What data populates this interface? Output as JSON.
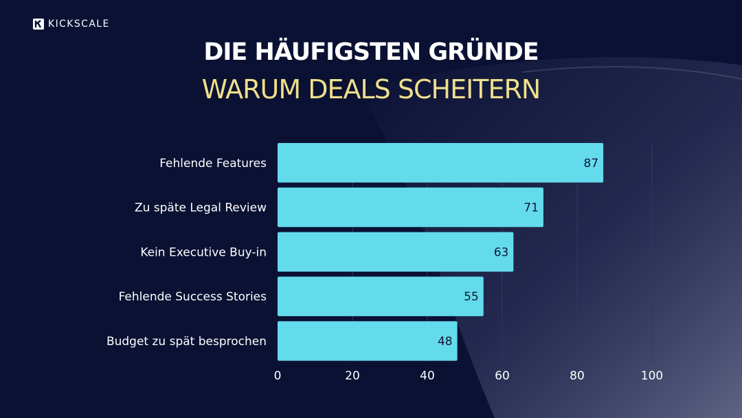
{
  "brand": {
    "name": "KICKSCALE",
    "logo_letter": "K"
  },
  "colors": {
    "background": "#0b1133",
    "bar": "#63dbec",
    "title": "#ffffff",
    "subtitle": "#eedf8c",
    "gridline": "#2f3866"
  },
  "chart_data": {
    "type": "bar",
    "orientation": "horizontal",
    "title": "DIE HÄUFIGSTEN GRÜNDE",
    "subtitle": "WARUM DEALS SCHEITERN",
    "categories": [
      "Fehlende Features",
      "Zu späte Legal Review",
      "Kein Executive Buy-in",
      "Fehlende Success Stories",
      "Budget zu spät besprochen"
    ],
    "values": [
      87,
      71,
      63,
      55,
      48
    ],
    "xlim": [
      0,
      100
    ],
    "xticks": [
      0,
      20,
      40,
      60,
      80,
      100
    ],
    "xtick_labels": [
      "0",
      "20",
      "40",
      "60",
      "80",
      "100"
    ],
    "grid": "vertical",
    "data_labels": true,
    "legend": "none"
  }
}
